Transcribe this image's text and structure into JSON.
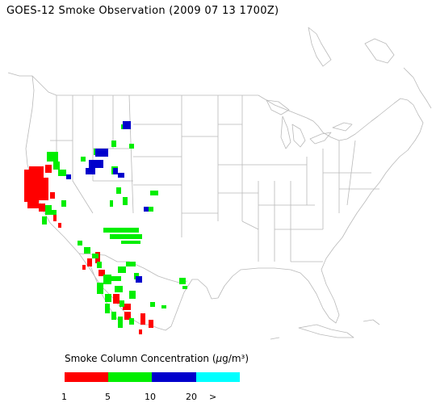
{
  "title": "GOES-12 Smoke Observation (2009 07 13  1700Z)",
  "legend": {
    "title_text": "Smoke Column Concentration (",
    "title_unit_greek": "μ",
    "title_unit_rest": "g/m³)",
    "ticks": [
      "1",
      "5",
      "10",
      "20",
      ">"
    ],
    "colors": [
      "#ff0000",
      "#00ee00",
      "#0000cc",
      "#00ffff"
    ]
  }
}
